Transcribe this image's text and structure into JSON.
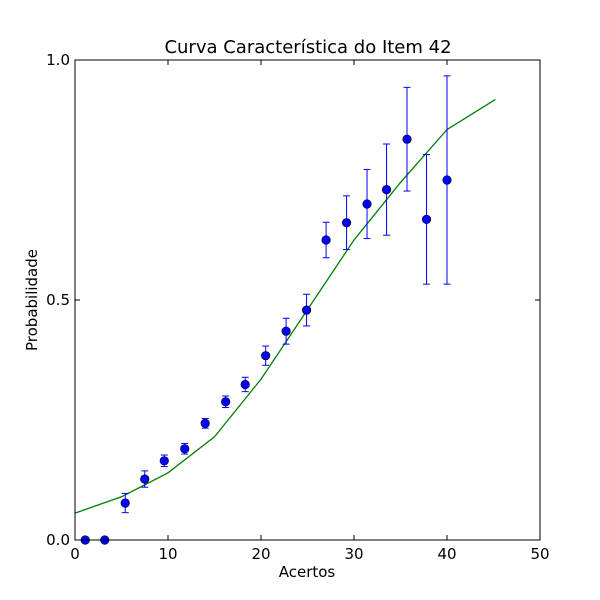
{
  "chart_data": {
    "type": "scatter",
    "title": "Curva Característica do Item 42",
    "xlabel": "Acertos",
    "ylabel": "Probabilidade",
    "xlim": [
      0,
      50
    ],
    "ylim": [
      0.0,
      1.0
    ],
    "xticks": [
      0,
      10,
      20,
      30,
      40,
      50
    ],
    "xtick_labels": [
      "0",
      "10",
      "20",
      "30",
      "40",
      "50"
    ],
    "yticks": [
      0.0,
      0.5,
      1.0
    ],
    "ytick_labels": [
      "0.0",
      "0.5",
      "1.0"
    ],
    "grid": false,
    "colors": {
      "points": "#0000ff",
      "errorbars": "#0000ff",
      "curve": "#008000"
    },
    "points": {
      "x": [
        1.1,
        3.2,
        5.4,
        7.5,
        9.6,
        11.8,
        14.0,
        16.2,
        18.3,
        20.5,
        22.7,
        24.9,
        27.0,
        29.2,
        31.4,
        33.5,
        35.7,
        37.8,
        40.0
      ],
      "y": [
        0.0,
        0.0,
        0.077,
        0.127,
        0.165,
        0.19,
        0.243,
        0.288,
        0.324,
        0.384,
        0.435,
        0.479,
        0.625,
        0.661,
        0.7,
        0.73,
        0.835,
        0.668,
        0.75
      ],
      "err": [
        0.0,
        0.0,
        0.02,
        0.017,
        0.012,
        0.011,
        0.01,
        0.012,
        0.015,
        0.02,
        0.027,
        0.033,
        0.037,
        0.056,
        0.072,
        0.095,
        0.108,
        0.135,
        0.217
      ]
    },
    "curve": {
      "x": [
        0,
        5,
        10,
        15,
        20,
        25,
        30,
        35,
        40,
        45.2
      ],
      "y": [
        0.056,
        0.09,
        0.14,
        0.215,
        0.335,
        0.48,
        0.625,
        0.745,
        0.855,
        0.918
      ]
    }
  }
}
